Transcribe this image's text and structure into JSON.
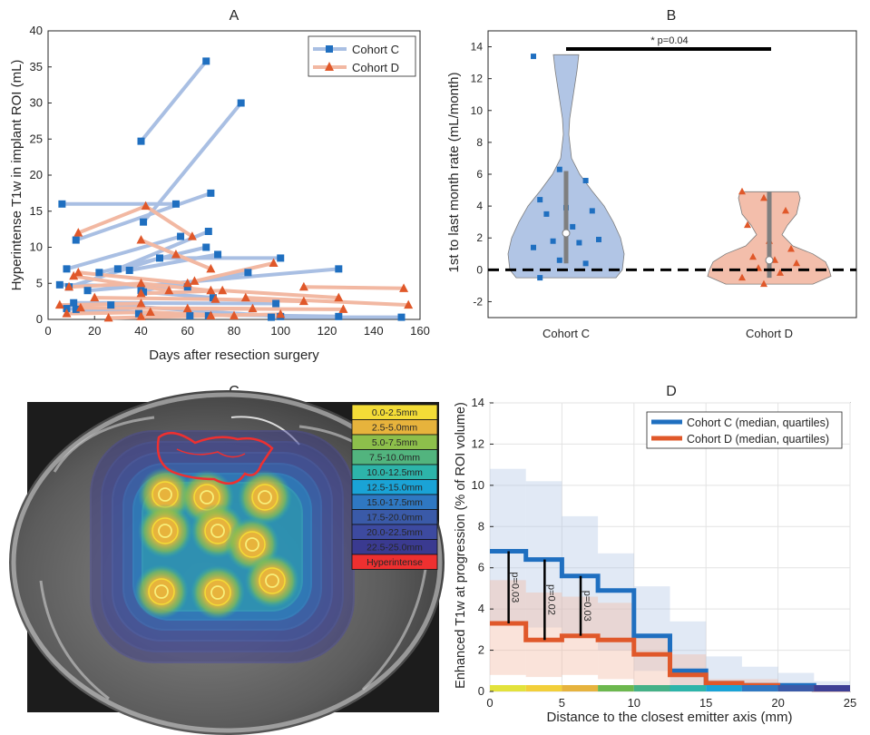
{
  "colors": {
    "cohort_c": "#1f6fc0",
    "cohort_c_light": "#a9bfe3",
    "cohort_d": "#e0582a",
    "cohort_d_light": "#f2b8a2"
  },
  "chart_data": [
    {
      "id": "A",
      "type": "line",
      "title": "A",
      "xlabel": "Days after resection surgery",
      "ylabel": "Hyperintense T1w in implant ROI (mL)",
      "xlim": [
        0,
        160
      ],
      "ylim": [
        0,
        40
      ],
      "xticks": [
        "0",
        "20",
        "40",
        "60",
        "80",
        "100",
        "120",
        "140",
        "160"
      ],
      "yticks": [
        "0",
        "5",
        "10",
        "15",
        "20",
        "25",
        "30",
        "35",
        "40"
      ],
      "grid": false,
      "legend_position": "top-right",
      "series": [
        {
          "name": "Cohort C",
          "marker": "square",
          "trajectories": [
            [
              [
                40,
                24.7
              ],
              [
                68,
                35.8
              ]
            ],
            [
              [
                41,
                13.5
              ],
              [
                83,
                30
              ]
            ],
            [
              [
                6,
                16
              ],
              [
                55,
                16
              ]
            ],
            [
              [
                12,
                11
              ],
              [
                70,
                17.5
              ]
            ],
            [
              [
                30,
                7
              ],
              [
                69,
                12.2
              ]
            ],
            [
              [
                8,
                7
              ],
              [
                57,
                11.5
              ]
            ],
            [
              [
                22,
                6.5
              ],
              [
                68,
                10
              ]
            ],
            [
              [
                35,
                6.8
              ],
              [
                73,
                9
              ]
            ],
            [
              [
                9,
                4.5
              ],
              [
                48,
                8.5
              ],
              [
                100,
                8.5
              ]
            ],
            [
              [
                40,
                4
              ],
              [
                86,
                6.5
              ]
            ],
            [
              [
                5,
                4.8
              ],
              [
                60,
                4.5
              ]
            ],
            [
              [
                17,
                4
              ],
              [
                125,
                7
              ]
            ],
            [
              [
                41,
                3.8
              ],
              [
                71,
                3
              ]
            ],
            [
              [
                11,
                2.3
              ],
              [
                98,
                2.2
              ]
            ],
            [
              [
                27,
                2
              ],
              [
                100,
                0.4
              ]
            ],
            [
              [
                8,
                1.5
              ],
              [
                69,
                0.5
              ]
            ],
            [
              [
                39,
                0.8
              ],
              [
                125,
                0.4
              ]
            ],
            [
              [
                96,
                0.3
              ],
              [
                152,
                0.3
              ]
            ],
            [
              [
                12,
                1.4
              ],
              [
                61,
                0.5
              ]
            ]
          ]
        },
        {
          "name": "Cohort D",
          "marker": "triangle",
          "trajectories": [
            [
              [
                13,
                12
              ],
              [
                42,
                15.7
              ],
              [
                62,
                11.5
              ]
            ],
            [
              [
                40,
                11
              ],
              [
                55,
                9
              ],
              [
                70,
                7
              ]
            ],
            [
              [
                13,
                6.5
              ],
              [
                60,
                5
              ]
            ],
            [
              [
                9,
                4.5
              ],
              [
                40,
                5
              ],
              [
                70,
                4
              ]
            ],
            [
              [
                63,
                5.3
              ],
              [
                97,
                7.8
              ]
            ],
            [
              [
                11,
                6
              ],
              [
                52,
                4
              ]
            ],
            [
              [
                110,
                4.5
              ],
              [
                153,
                4.3
              ]
            ],
            [
              [
                40,
                3.6
              ],
              [
                75,
                4
              ],
              [
                125,
                3
              ]
            ],
            [
              [
                20,
                3
              ],
              [
                72,
                2.8
              ],
              [
                110,
                2.5
              ]
            ],
            [
              [
                5,
                2
              ],
              [
                40,
                2.2
              ]
            ],
            [
              [
                85,
                3
              ],
              [
                155,
                2
              ]
            ],
            [
              [
                14,
                1.6
              ],
              [
                88,
                1.5
              ]
            ],
            [
              [
                8,
                0.8
              ],
              [
                44,
                1
              ],
              [
                80,
                0.5
              ]
            ],
            [
              [
                40,
                0.4
              ],
              [
                100,
                0.7
              ]
            ],
            [
              [
                26,
                0.2
              ],
              [
                70,
                0.5
              ]
            ],
            [
              [
                60,
                1.5
              ],
              [
                127,
                1.4
              ]
            ]
          ]
        }
      ]
    },
    {
      "id": "B",
      "type": "violin",
      "title": "B",
      "ylabel": "1st to last month rate (mL/month)",
      "ylim": [
        -3,
        15
      ],
      "yticks": [
        "-2",
        "0",
        "2",
        "4",
        "6",
        "8",
        "10",
        "12",
        "14"
      ],
      "categories": [
        "Cohort C",
        "Cohort D"
      ],
      "annotation": "* p=0.04",
      "reference_line": 0,
      "groups": [
        {
          "name": "Cohort C",
          "median": 2.3,
          "q1": 0.4,
          "q3": 6.2,
          "points": [
            13.4,
            6.3,
            5.6,
            4.4,
            3.9,
            3.7,
            3.5,
            2.7,
            1.9,
            1.8,
            1.7,
            1.4,
            0.6,
            0.4,
            -0.5
          ]
        },
        {
          "name": "Cohort D",
          "median": 0.6,
          "q1": -0.5,
          "q3": 4.9,
          "points": [
            4.9,
            4.5,
            3.7,
            2.8,
            1.8,
            1.3,
            0.8,
            0.6,
            0.4,
            0.1,
            -0.2,
            -0.5,
            -0.9
          ]
        }
      ]
    },
    {
      "id": "C",
      "type": "image",
      "title": "C",
      "legend": [
        "0.0-2.5mm",
        "2.5-5.0mm",
        "5.0-7.5mm",
        "7.5-10.0mm",
        "10.0-12.5mm",
        "12.5-15.0mm",
        "15.0-17.5mm",
        "17.5-20.0mm",
        "20.0-22.5mm",
        "22.5-25.0mm",
        "Hyperintense"
      ],
      "legend_colors": [
        "#f3dc37",
        "#e7b33c",
        "#8dbf4b",
        "#52b47e",
        "#2db4aa",
        "#1aa3d6",
        "#2f78c2",
        "#3a5aa8",
        "#3d4aa0",
        "#3a3a90",
        "#ee3030"
      ]
    },
    {
      "id": "D",
      "type": "step",
      "title": "D",
      "xlabel": "Distance to the closest emitter axis (mm)",
      "ylabel": "Enhanced T1w at progression (% of ROI volume)",
      "xlim": [
        0,
        25
      ],
      "ylim": [
        0,
        14
      ],
      "xticks": [
        "0",
        "5",
        "10",
        "15",
        "20",
        "25"
      ],
      "yticks": [
        "0",
        "2",
        "4",
        "6",
        "8",
        "10",
        "12",
        "14"
      ],
      "grid": true,
      "legend_position": "top-right",
      "bin_edges": [
        0,
        2.5,
        5,
        7.5,
        10,
        12.5,
        15,
        17.5,
        20,
        22.5,
        25
      ],
      "series": [
        {
          "name": "Cohort C (median, quartiles)",
          "median": [
            6.8,
            6.4,
            5.6,
            4.9,
            2.7,
            1.0,
            0.4,
            0.3,
            0.3,
            0.1
          ],
          "q1": [
            3.3,
            3.1,
            2.7,
            2.0,
            1.0,
            0.3,
            0.1,
            0.1,
            0.0,
            0.0
          ],
          "q3": [
            10.8,
            10.2,
            8.5,
            6.7,
            5.1,
            3.4,
            1.7,
            1.2,
            0.9,
            0.5
          ]
        },
        {
          "name": "Cohort D (median, quartiles)",
          "median": [
            3.3,
            2.5,
            2.7,
            2.5,
            1.8,
            0.8,
            0.4,
            0.3,
            0.2,
            0.1
          ],
          "q1": [
            0.8,
            0.7,
            0.8,
            0.6,
            0.3,
            0.1,
            0.0,
            0.0,
            0.0,
            0.0
          ],
          "q3": [
            5.4,
            4.8,
            4.6,
            4.3,
            2.6,
            1.8,
            0.6,
            0.6,
            0.4,
            0.2
          ]
        }
      ],
      "annotations": [
        {
          "x": 1.3,
          "y_low": 3.3,
          "y_high": 6.8,
          "label": "p=0.03"
        },
        {
          "x": 3.8,
          "y_low": 2.5,
          "y_high": 6.4,
          "label": "p=0.02"
        },
        {
          "x": 6.3,
          "y_low": 2.7,
          "y_high": 5.6,
          "label": "p=0.03"
        }
      ],
      "colorbar": [
        "#e3e23c",
        "#f2cf3a",
        "#e6b33e",
        "#6cb84f",
        "#45b187",
        "#2db4aa",
        "#1aa3d6",
        "#2f78c2",
        "#3a5aa8",
        "#3d3f95"
      ]
    }
  ]
}
